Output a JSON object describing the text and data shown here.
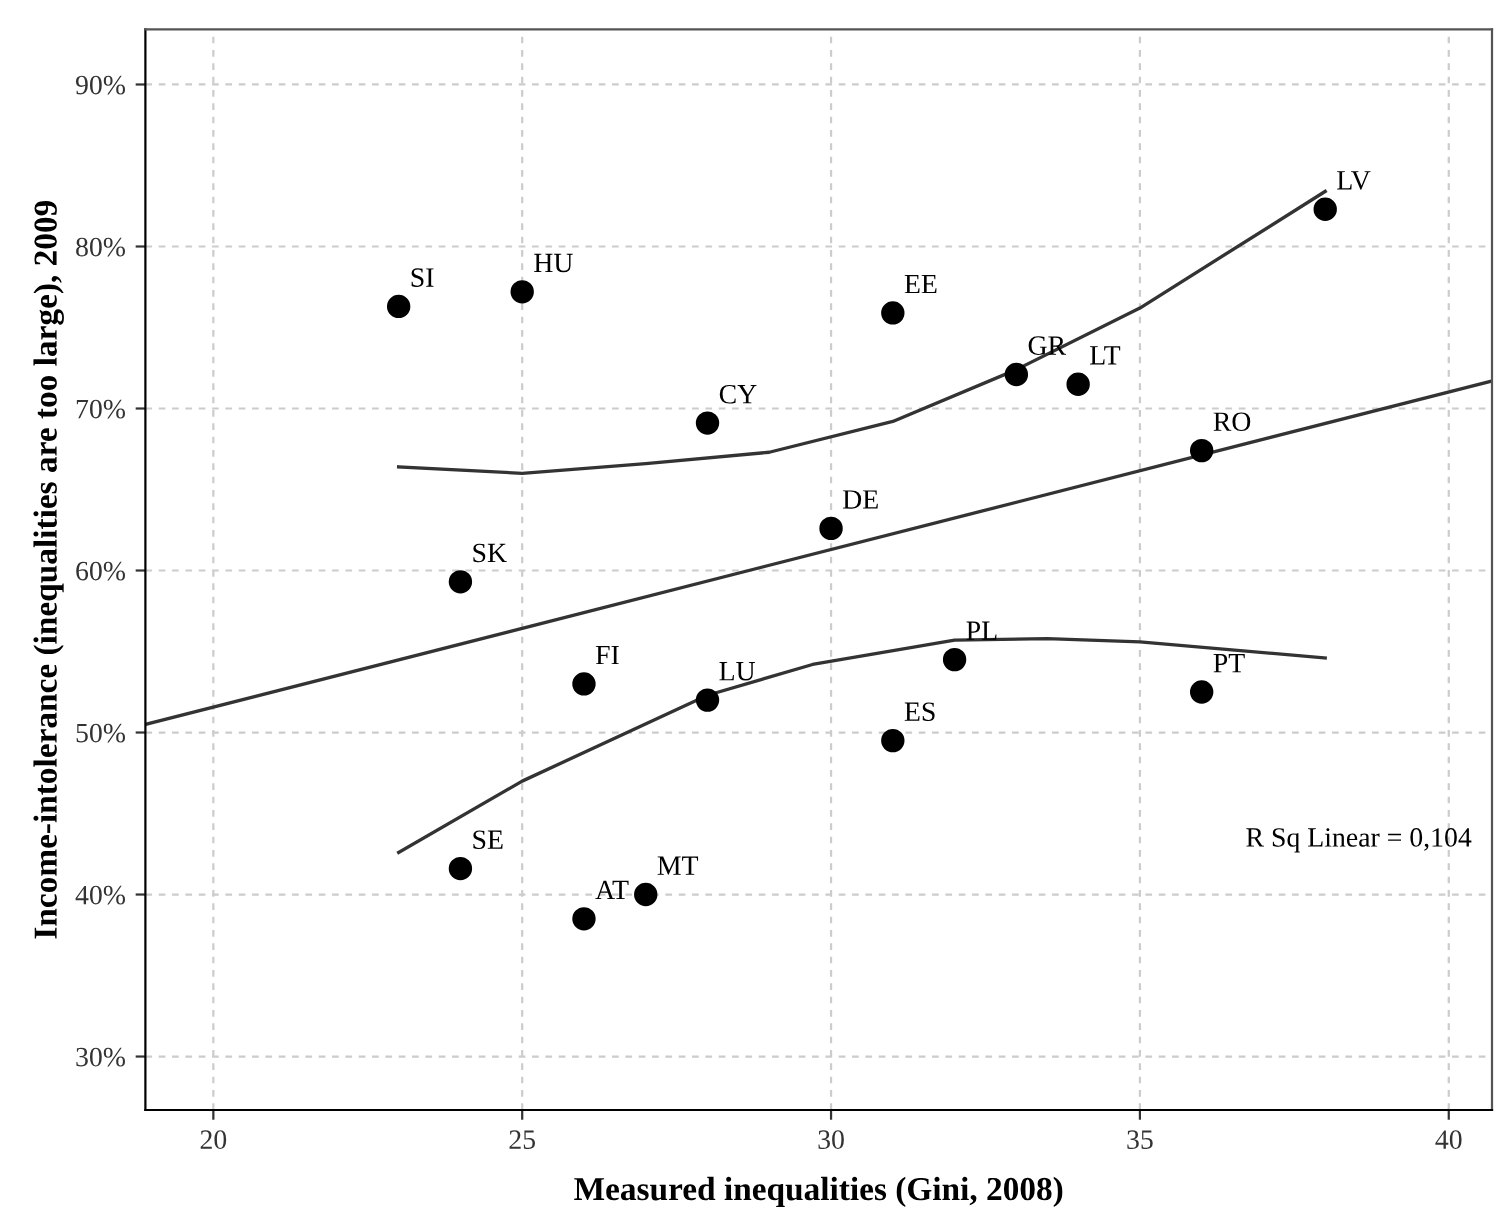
{
  "chart_data": {
    "type": "scatter",
    "xlabel": "Measured inequalities (Gini, 2008)",
    "ylabel": "Income-intolerance (inequalities are too large), 2009",
    "xlim": [
      18.9,
      40.7
    ],
    "ylim": [
      26.7,
      93.4
    ],
    "xticks": [
      20,
      25,
      30,
      35,
      40
    ],
    "yticks": [
      {
        "value": 30,
        "label": "30%"
      },
      {
        "value": 40,
        "label": "40%"
      },
      {
        "value": 50,
        "label": "50%"
      },
      {
        "value": 60,
        "label": "60%"
      },
      {
        "value": 70,
        "label": "70%"
      },
      {
        "value": 80,
        "label": "80%"
      },
      {
        "value": 90,
        "label": "90%"
      }
    ],
    "grid": true,
    "legend": false,
    "series": [
      {
        "color": "#000000",
        "marker": "circle",
        "x": [
          23,
          25,
          28,
          24,
          31,
          33,
          34,
          38,
          36,
          30,
          26,
          28,
          24,
          26,
          27,
          32,
          31,
          36
        ],
        "values": [
          76.3,
          77.2,
          69.1,
          59.3,
          75.9,
          72.1,
          71.5,
          82.3,
          67.4,
          62.6,
          53.0,
          52.0,
          41.6,
          38.5,
          40.0,
          54.5,
          49.5,
          52.5
        ]
      },
      {
        "type": "line",
        "color": "#333333",
        "marker": "none",
        "line_style": "solid",
        "x": [
          18.9,
          40.7
        ],
        "values": [
          50.5,
          71.7
        ]
      },
      {
        "type": "line",
        "color": "#333333",
        "marker": "none",
        "line_style": "solid",
        "x": [
          23,
          25,
          27,
          29,
          31,
          33,
          35,
          38
        ],
        "values": [
          66.4,
          66.0,
          66.6,
          67.3,
          69.2,
          72.4,
          76.2,
          83.4
        ]
      },
      {
        "type": "line",
        "color": "#333333",
        "marker": "none",
        "line_style": "solid",
        "x": [
          23,
          25,
          28,
          29.7,
          32,
          33.5,
          35,
          38
        ],
        "values": [
          42.6,
          47.0,
          52.3,
          54.2,
          55.7,
          55.8,
          55.6,
          54.6
        ]
      }
    ],
    "annotations": [
      {
        "text": "SI",
        "x": 23,
        "y": 76.3
      },
      {
        "text": "HU",
        "x": 25,
        "y": 77.2
      },
      {
        "text": "CY",
        "x": 28,
        "y": 69.1
      },
      {
        "text": "SK",
        "x": 24,
        "y": 59.3
      },
      {
        "text": "EE",
        "x": 31,
        "y": 75.9
      },
      {
        "text": "GR",
        "x": 33,
        "y": 72.1
      },
      {
        "text": "LT",
        "x": 34,
        "y": 71.5
      },
      {
        "text": "LV",
        "x": 38,
        "y": 82.3
      },
      {
        "text": "RO",
        "x": 36,
        "y": 67.4
      },
      {
        "text": "DE",
        "x": 30,
        "y": 62.6
      },
      {
        "text": "FI",
        "x": 26,
        "y": 53.0
      },
      {
        "text": "LU",
        "x": 28,
        "y": 52.0
      },
      {
        "text": "SE",
        "x": 24,
        "y": 41.6
      },
      {
        "text": "AT",
        "x": 26,
        "y": 38.5
      },
      {
        "text": "MT",
        "x": 27,
        "y": 40.0
      },
      {
        "text": "PL",
        "x": 32,
        "y": 54.5
      },
      {
        "text": "ES",
        "x": 31,
        "y": 49.5
      },
      {
        "text": "PT",
        "x": 36,
        "y": 52.5
      },
      "R Sq Linear = 0,104"
    ]
  }
}
